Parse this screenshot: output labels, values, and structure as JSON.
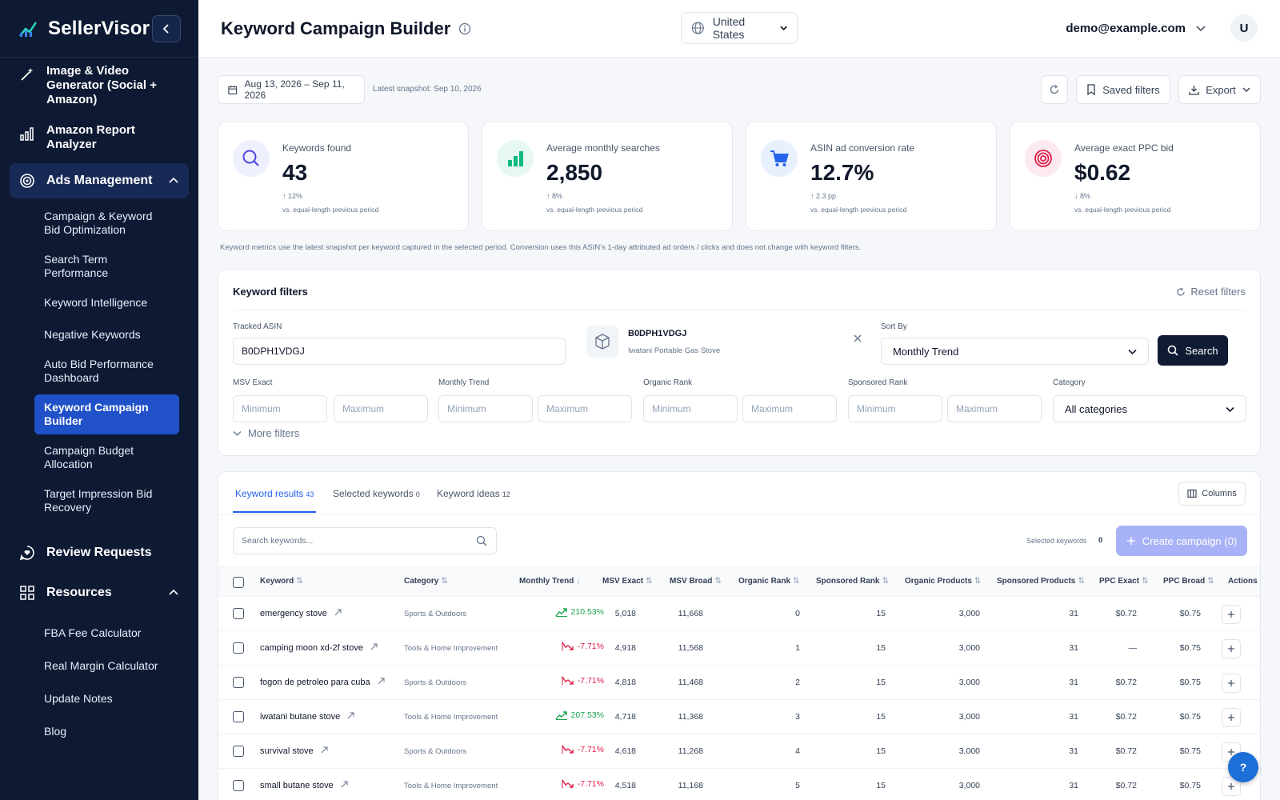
{
  "brand": {
    "name": "SellerVisor"
  },
  "sidebar": {
    "top_items": [
      {
        "label": "Image & Video Generator (Social + Amazon)",
        "icon": "magic-wand-icon"
      },
      {
        "label": "Amazon Report Analyzer",
        "icon": "bar-chart-icon"
      }
    ],
    "ads_section": {
      "label": "Ads Management",
      "icon": "target-icon"
    },
    "ads_items": [
      "Campaign & Keyword Bid Optimization",
      "Search Term Performance",
      "Keyword Intelligence",
      "Negative Keywords",
      "Auto Bid Performance Dashboard",
      "Keyword Campaign Builder",
      "Campaign Budget Allocation",
      "Target Impression Bid Recovery"
    ],
    "active_item": "Keyword Campaign Builder",
    "review_requests": {
      "label": "Review Requests",
      "icon": "chat-heart-icon"
    },
    "resources": {
      "label": "Resources",
      "icon": "grid-icon"
    },
    "resource_items": [
      "FBA Fee Calculator",
      "Real Margin Calculator",
      "Update Notes",
      "Blog"
    ]
  },
  "header": {
    "title": "Keyword Campaign Builder",
    "country": "United States",
    "user_email": "demo@example.com",
    "avatar_initial": "U"
  },
  "toolbar": {
    "date_range": "Aug 13, 2026 – Sep 11, 2026",
    "snapshot": "Latest snapshot: Sep 10, 2026",
    "saved_filters": "Saved filters",
    "export": "Export"
  },
  "metrics": [
    {
      "label": "Keywords found",
      "value": "43",
      "delta": "↑ 12%",
      "note": "vs. equal-length previous period",
      "icon": "search-icon",
      "color": "#4f46e5"
    },
    {
      "label": "Average monthly searches",
      "value": "2,850",
      "delta": "↑ 8%",
      "note": "vs. equal-length previous period",
      "icon": "bar-chart-icon",
      "color": "#10b981"
    },
    {
      "label": "ASIN ad conversion rate",
      "value": "12.7%",
      "delta": "↑ 2.3 pp",
      "note": "vs. equal-length previous period",
      "icon": "cart-icon",
      "color": "#2563eb"
    },
    {
      "label": "Average exact PPC bid",
      "value": "$0.62",
      "delta": "↓ 8%",
      "note": "vs. equal-length previous period",
      "icon": "target-icon",
      "color": "#e11d48"
    }
  ],
  "metrics_note": "Keyword metrics use the latest snapshot per keyword captured in the selected period. Conversion uses this ASIN's 1-day attributed ad orders / clicks and does not change with keyword filters.",
  "filters": {
    "title": "Keyword filters",
    "reset": "Reset filters",
    "tracked_asin_label": "Tracked ASIN",
    "tracked_asin_value": "B0DPH1VDGJ",
    "asin_code": "B0DPH1VDGJ",
    "asin_name": "Iwatani Portable Gas Stove",
    "sort_by_label": "Sort By",
    "sort_by_value": "Monthly Trend",
    "search": "Search",
    "ranges": [
      {
        "label": "MSV Exact",
        "min": "Minimum",
        "max": "Maximum"
      },
      {
        "label": "Monthly Trend",
        "min": "Minimum",
        "max": "Maximum"
      },
      {
        "label": "Organic Rank",
        "min": "Minimum",
        "max": "Maximum"
      },
      {
        "label": "Sponsored Rank",
        "min": "Minimum",
        "max": "Maximum"
      }
    ],
    "category_label": "Category",
    "category_value": "All categories",
    "more_filters": "More filters"
  },
  "results": {
    "tabs": [
      {
        "label": "Keyword results",
        "count": "43"
      },
      {
        "label": "Selected keywords",
        "count": "0"
      },
      {
        "label": "Keyword ideas",
        "count": "12"
      }
    ],
    "columns_btn": "Columns",
    "search_placeholder": "Search keywords...",
    "selected_label": "Selected keywords",
    "selected_count": "0",
    "create_campaign": "Create campaign (0)",
    "headers": [
      "Keyword",
      "Category",
      "Monthly Trend",
      "MSV Exact",
      "MSV Broad",
      "Organic Rank",
      "Sponsored Rank",
      "Organic Products",
      "Sponsored Products",
      "PPC Exact",
      "PPC Broad",
      "Actions"
    ],
    "rows": [
      {
        "keyword": "emergency stove",
        "category": "Sports & Outdoors",
        "trend": "210.53%",
        "dir": "up",
        "msv_exact": "5,018",
        "msv_broad": "11,668",
        "organic_rank": "0",
        "sponsored_rank": "15",
        "organic_products": "3,000",
        "sponsored_products": "31",
        "ppc_exact": "$0.72",
        "ppc_broad": "$0.75"
      },
      {
        "keyword": "camping moon xd-2f stove",
        "category": "Tools & Home Improvement",
        "trend": "-7.71%",
        "dir": "down",
        "msv_exact": "4,918",
        "msv_broad": "11,568",
        "organic_rank": "1",
        "sponsored_rank": "15",
        "organic_products": "3,000",
        "sponsored_products": "31",
        "ppc_exact": "—",
        "ppc_broad": "$0.75"
      },
      {
        "keyword": "fogon de petroleo para cuba",
        "category": "Sports & Outdoors",
        "trend": "-7.71%",
        "dir": "down",
        "msv_exact": "4,818",
        "msv_broad": "11,468",
        "organic_rank": "2",
        "sponsored_rank": "15",
        "organic_products": "3,000",
        "sponsored_products": "31",
        "ppc_exact": "$0.72",
        "ppc_broad": "$0.75"
      },
      {
        "keyword": "iwatani butane stove",
        "category": "Tools & Home Improvement",
        "trend": "207.53%",
        "dir": "up",
        "msv_exact": "4,718",
        "msv_broad": "11,368",
        "organic_rank": "3",
        "sponsored_rank": "15",
        "organic_products": "3,000",
        "sponsored_products": "31",
        "ppc_exact": "$0.72",
        "ppc_broad": "$0.75"
      },
      {
        "keyword": "survival stove",
        "category": "Sports & Outdoors",
        "trend": "-7.71%",
        "dir": "down",
        "msv_exact": "4,618",
        "msv_broad": "11,268",
        "organic_rank": "4",
        "sponsored_rank": "15",
        "organic_products": "3,000",
        "sponsored_products": "31",
        "ppc_exact": "$0.72",
        "ppc_broad": "$0.75"
      },
      {
        "keyword": "small butane stove",
        "category": "Tools & Home Improvement",
        "trend": "-7.71%",
        "dir": "down",
        "msv_exact": "4,518",
        "msv_broad": "11,168",
        "organic_rank": "5",
        "sponsored_rank": "15",
        "organic_products": "3,000",
        "sponsored_products": "31",
        "ppc_exact": "$0.72",
        "ppc_broad": "$0.75"
      }
    ]
  },
  "help": "?"
}
